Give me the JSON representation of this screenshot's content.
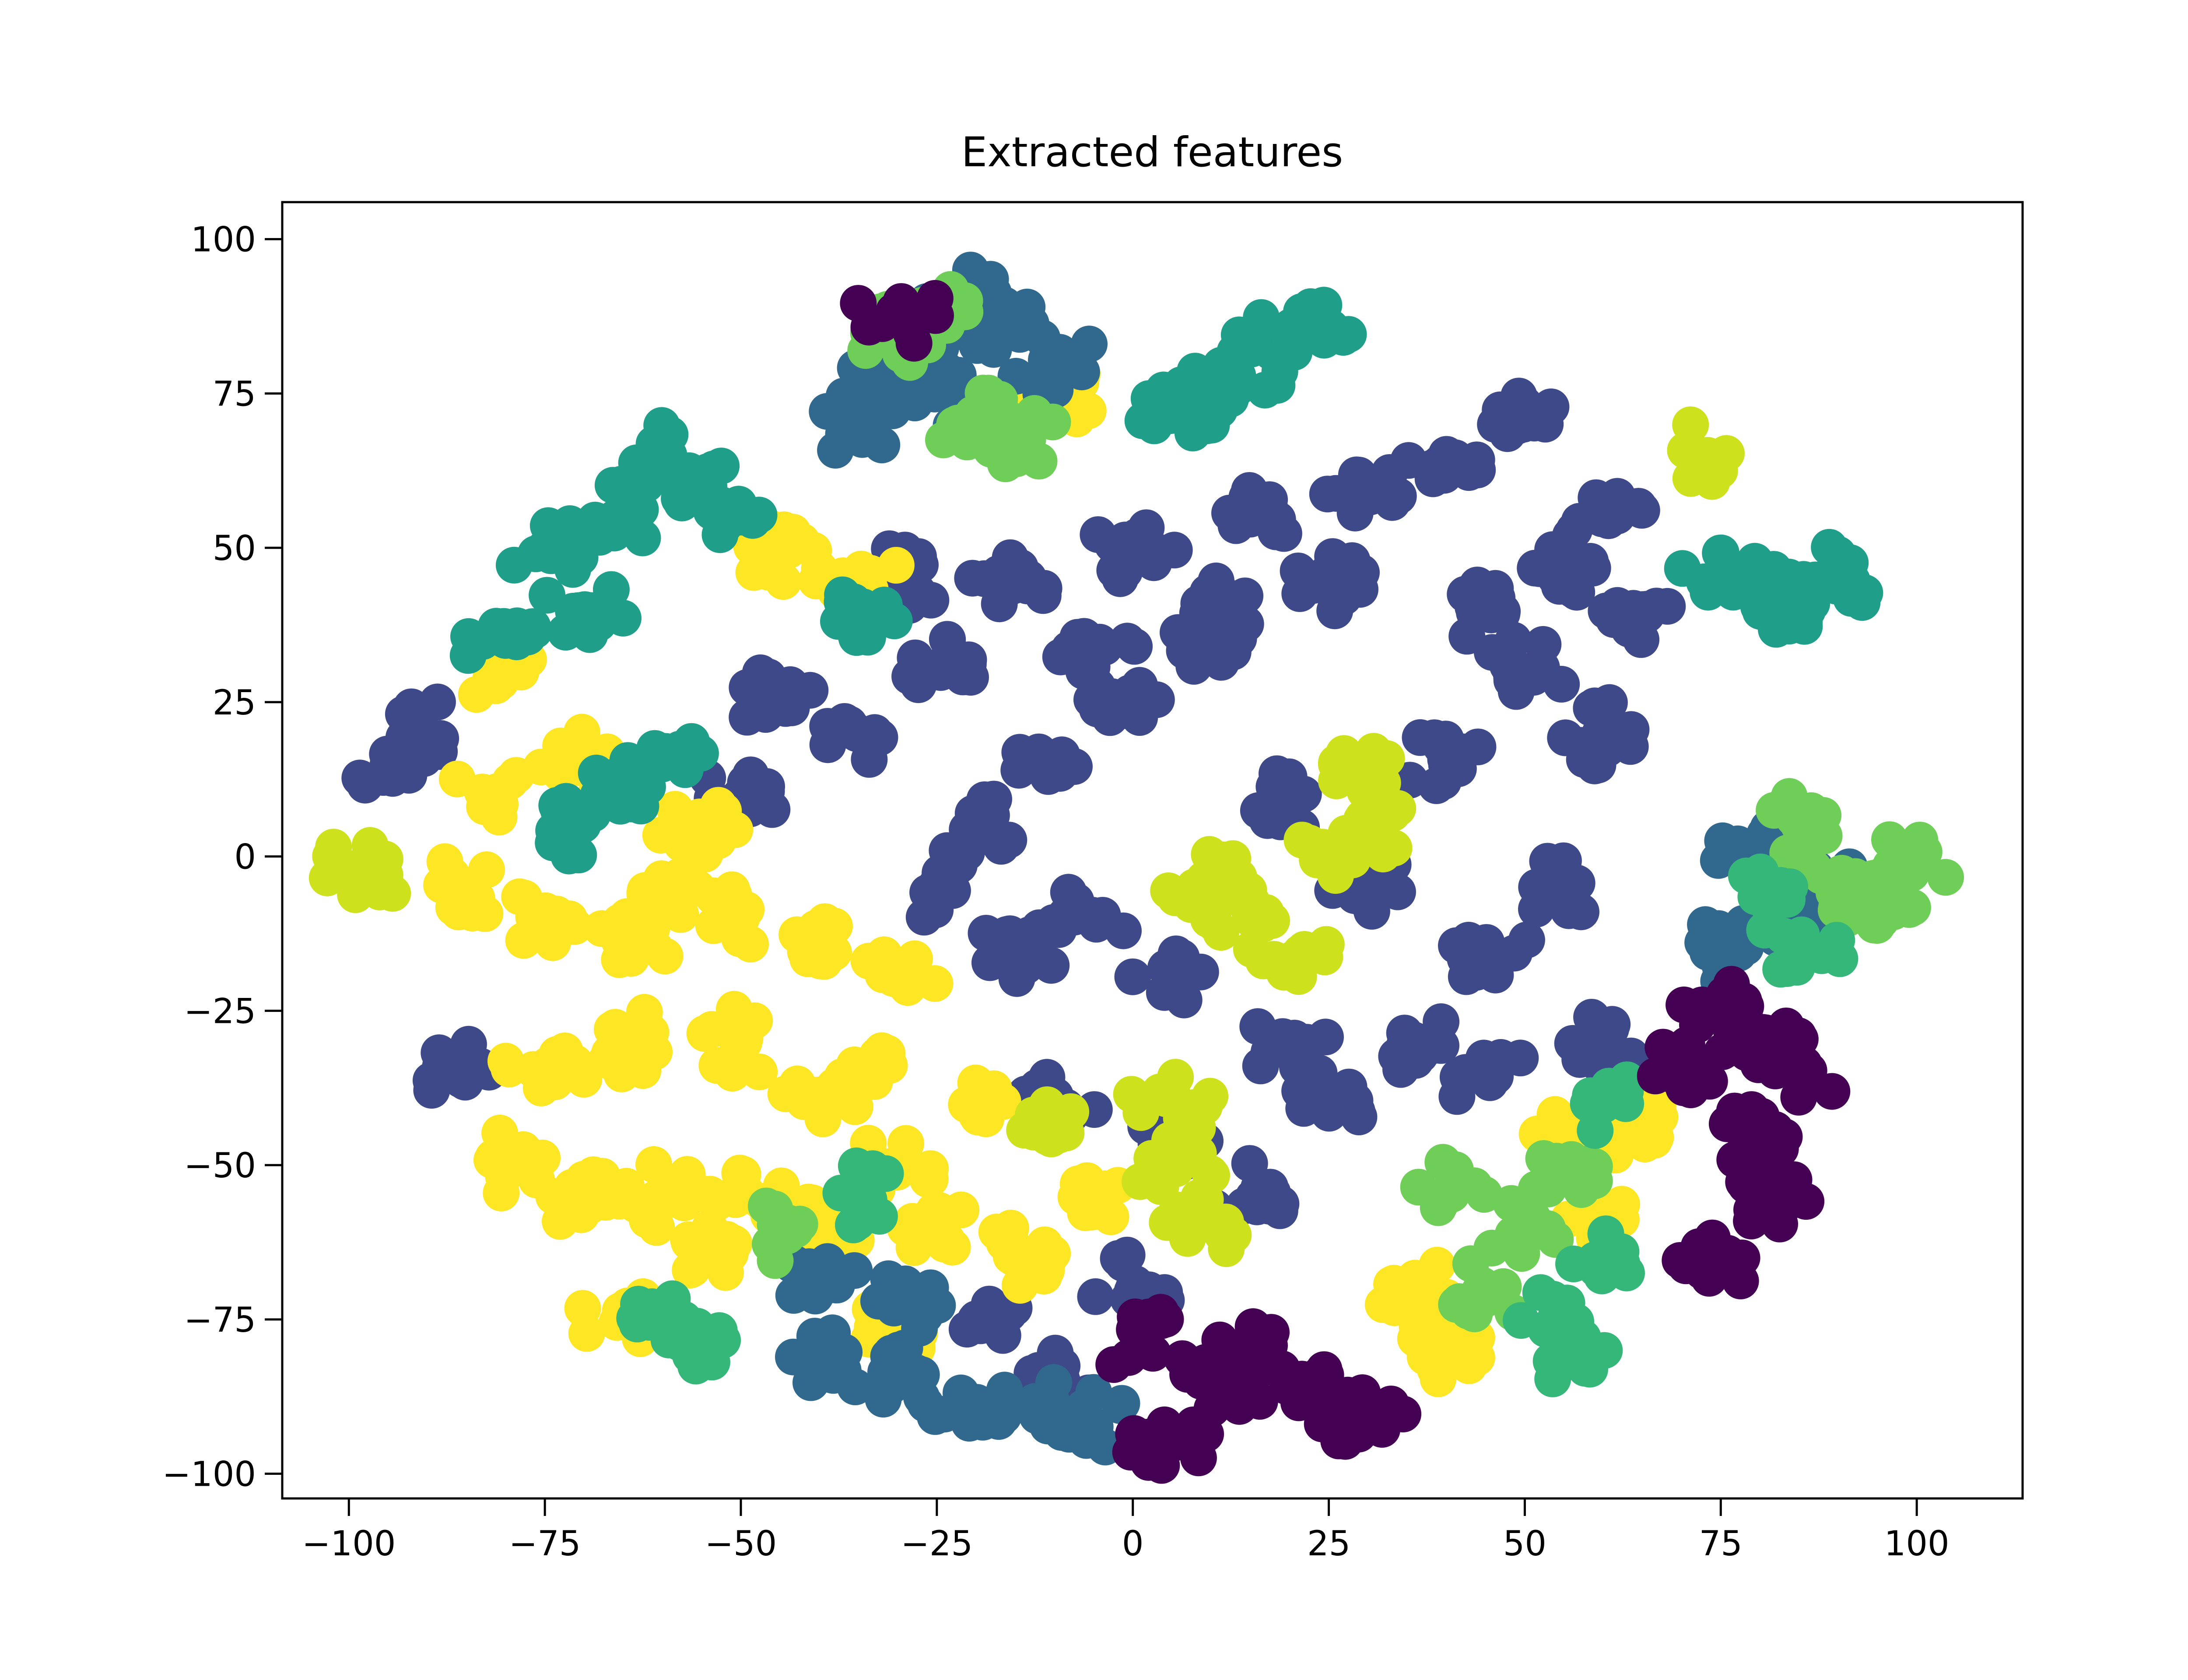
{
  "chart_data": {
    "type": "scatter",
    "title": "Extracted features",
    "xlabel": "",
    "ylabel": "",
    "xlim": [
      -108.5,
      113.5
    ],
    "ylim": [
      -104,
      106
    ],
    "xticks": [
      -100,
      -75,
      -50,
      -25,
      0,
      25,
      50,
      75,
      100
    ],
    "yticks": [
      100,
      75,
      50,
      25,
      0,
      -25,
      -50,
      -75,
      -100
    ],
    "xtick_labels": [
      "−100",
      "−75",
      "−50",
      "−25",
      "0",
      "25",
      "50",
      "75",
      "100"
    ],
    "ytick_labels": [
      "100",
      "75",
      "50",
      "25",
      "0",
      "−25",
      "−50",
      "−75",
      "−100"
    ],
    "grid": false,
    "legend": "none",
    "colormap": "viridis",
    "colors": [
      "#440154",
      "#482878",
      "#3e4989",
      "#31688e",
      "#26828e",
      "#1f9e89",
      "#35b779",
      "#6ece58",
      "#b5de2b",
      "#fde725"
    ],
    "series": [
      {
        "color": "#3e4989",
        "points": [
          [
            -20,
            5
          ],
          [
            -10,
            15
          ],
          [
            0,
            25
          ],
          [
            10,
            35
          ],
          [
            20,
            10
          ],
          [
            30,
            -5
          ],
          [
            40,
            15
          ],
          [
            50,
            30
          ],
          [
            60,
            20
          ],
          [
            55,
            -5
          ],
          [
            45,
            -15
          ],
          [
            35,
            -30
          ],
          [
            20,
            -30
          ],
          [
            5,
            -20
          ],
          [
            -5,
            -10
          ],
          [
            -15,
            -15
          ],
          [
            -25,
            -5
          ],
          [
            -35,
            20
          ],
          [
            -45,
            25
          ],
          [
            -30,
            45
          ],
          [
            -15,
            45
          ],
          [
            0,
            50
          ],
          [
            15,
            55
          ],
          [
            30,
            60
          ],
          [
            40,
            65
          ],
          [
            50,
            70
          ],
          [
            60,
            55
          ],
          [
            65,
            40
          ],
          [
            55,
            45
          ],
          [
            45,
            40
          ],
          [
            25,
            45
          ],
          [
            10,
            40
          ],
          [
            -5,
            35
          ],
          [
            -25,
            30
          ],
          [
            -50,
            10
          ],
          [
            -90,
            20
          ],
          [
            -95,
            15
          ],
          [
            -85,
            -35
          ],
          [
            -10,
            -40
          ],
          [
            5,
            -45
          ],
          [
            15,
            -55
          ],
          [
            25,
            -40
          ],
          [
            45,
            -35
          ],
          [
            60,
            -30
          ],
          [
            -20,
            -75
          ],
          [
            -10,
            -85
          ],
          [
            0,
            -70
          ]
        ]
      },
      {
        "color": "#fde725",
        "points": [
          [
            -80,
            30
          ],
          [
            -82,
            10
          ],
          [
            -85,
            -5
          ],
          [
            -75,
            -10
          ],
          [
            -60,
            -5
          ],
          [
            -50,
            -10
          ],
          [
            -40,
            -15
          ],
          [
            -30,
            -20
          ],
          [
            -35,
            -35
          ],
          [
            -50,
            -30
          ],
          [
            -65,
            -30
          ],
          [
            -75,
            -35
          ],
          [
            -80,
            -50
          ],
          [
            -70,
            -55
          ],
          [
            -60,
            -55
          ],
          [
            -50,
            -55
          ],
          [
            -40,
            -60
          ],
          [
            -30,
            -50
          ],
          [
            -25,
            -60
          ],
          [
            -15,
            -65
          ],
          [
            -5,
            -55
          ],
          [
            -65,
            -75
          ],
          [
            -55,
            -65
          ],
          [
            -30,
            -75
          ],
          [
            -20,
            -40
          ],
          [
            -40,
            -40
          ],
          [
            -55,
            5
          ],
          [
            -70,
            15
          ],
          [
            -45,
            50
          ],
          [
            -35,
            45
          ],
          [
            -10,
            75
          ],
          [
            55,
            -45
          ],
          [
            65,
            -45
          ],
          [
            60,
            -60
          ],
          [
            35,
            -70
          ],
          [
            40,
            -80
          ],
          [
            -65,
            -15
          ]
        ]
      },
      {
        "color": "#cde11d",
        "points": [
          [
            -98,
            -2
          ],
          [
            10,
            -5
          ],
          [
            15,
            -10
          ],
          [
            20,
            -15
          ],
          [
            25,
            0
          ],
          [
            30,
            5
          ],
          [
            28,
            15
          ],
          [
            5,
            -40
          ],
          [
            5,
            -50
          ],
          [
            8,
            -60
          ],
          [
            73,
            65
          ],
          [
            -10,
            -45
          ]
        ]
      },
      {
        "color": "#1f9e89",
        "points": [
          [
            -75,
            50
          ],
          [
            -70,
            40
          ],
          [
            -65,
            55
          ],
          [
            -60,
            65
          ],
          [
            -55,
            60
          ],
          [
            -50,
            55
          ],
          [
            -80,
            35
          ],
          [
            15,
            80
          ],
          [
            20,
            85
          ],
          [
            25,
            85
          ],
          [
            10,
            75
          ],
          [
            5,
            72
          ],
          [
            75,
            45
          ],
          [
            80,
            42
          ],
          [
            85,
            40
          ],
          [
            90,
            45
          ],
          [
            -65,
            10
          ],
          [
            -60,
            15
          ],
          [
            -70,
            5
          ],
          [
            -35,
            40
          ]
        ]
      },
      {
        "color": "#31688e",
        "points": [
          [
            -35,
            70
          ],
          [
            -30,
            80
          ],
          [
            -25,
            85
          ],
          [
            -20,
            90
          ],
          [
            -15,
            85
          ],
          [
            -10,
            80
          ],
          [
            -25,
            75
          ],
          [
            -40,
            -80
          ],
          [
            -30,
            -85
          ],
          [
            -20,
            -90
          ],
          [
            -10,
            -90
          ],
          [
            -5,
            -92
          ],
          [
            85,
            -10
          ],
          [
            90,
            -5
          ],
          [
            80,
            0
          ],
          [
            75,
            -15
          ],
          [
            -40,
            -70
          ],
          [
            -30,
            -72
          ]
        ]
      },
      {
        "color": "#6ece58",
        "points": [
          [
            85,
            5
          ],
          [
            90,
            -5
          ],
          [
            95,
            -10
          ],
          [
            100,
            0
          ],
          [
            40,
            -55
          ],
          [
            50,
            -60
          ],
          [
            55,
            -50
          ],
          [
            45,
            -70
          ],
          [
            -30,
            85
          ],
          [
            -25,
            88
          ],
          [
            -15,
            68
          ],
          [
            -20,
            70
          ],
          [
            -45,
            -60
          ]
        ]
      },
      {
        "color": "#35b779",
        "points": [
          [
            55,
            -75
          ],
          [
            60,
            -65
          ],
          [
            55,
            -80
          ],
          [
            80,
            -5
          ],
          [
            85,
            -15
          ],
          [
            60,
            -40
          ],
          [
            -60,
            -75
          ],
          [
            -55,
            -80
          ],
          [
            -35,
            -55
          ]
        ]
      },
      {
        "color": "#440154",
        "points": [
          [
            75,
            -25
          ],
          [
            80,
            -30
          ],
          [
            85,
            -35
          ],
          [
            70,
            -35
          ],
          [
            80,
            -45
          ],
          [
            82,
            -55
          ],
          [
            75,
            -65
          ],
          [
            10,
            -85
          ],
          [
            15,
            -80
          ],
          [
            20,
            -85
          ],
          [
            25,
            -88
          ],
          [
            30,
            -92
          ],
          [
            5,
            -95
          ],
          [
            0,
            -78
          ],
          [
            -30,
            88
          ]
        ]
      }
    ]
  }
}
